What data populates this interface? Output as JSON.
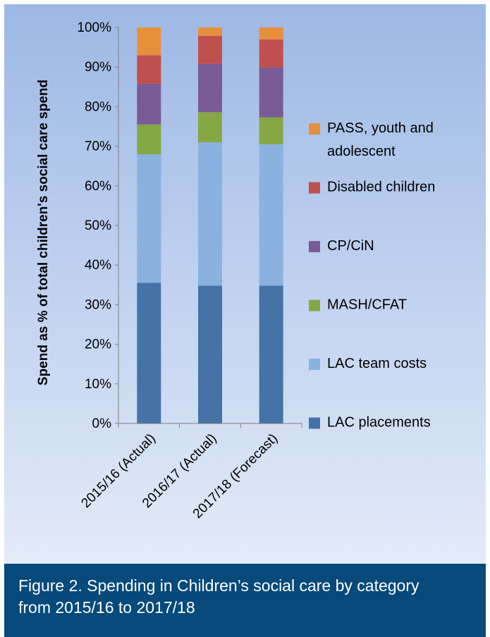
{
  "chart_data": {
    "type": "bar",
    "stacked": true,
    "title": "",
    "xlabel": "",
    "ylabel": "Spend as % of total children's social care spend",
    "ylim": [
      0,
      100
    ],
    "yticks": [
      "0%",
      "10%",
      "20%",
      "30%",
      "40%",
      "50%",
      "60%",
      "70%",
      "80%",
      "90%",
      "100%"
    ],
    "categories": [
      "2015/16 (Actual)",
      "2016/17 (Actual)",
      "2017/18 (Forecast)"
    ],
    "series": [
      {
        "name": "LAC placements",
        "color": "#4573a7",
        "values": [
          35.5,
          34.8,
          34.8
        ]
      },
      {
        "name": "LAC team costs",
        "color": "#8bb1e0",
        "values": [
          32.5,
          36.2,
          35.7
        ]
      },
      {
        "name": "MASH/CFAT",
        "color": "#86a844",
        "values": [
          7.5,
          7.6,
          6.8
        ]
      },
      {
        "name": "CP/CiN",
        "color": "#7a5b95",
        "values": [
          10.3,
          12.2,
          12.6
        ]
      },
      {
        "name": "Disabled children",
        "color": "#c0504d",
        "values": [
          7.2,
          7.1,
          7.1
        ]
      },
      {
        "name": "PASS, youth and adolescent",
        "color": "#e6903c",
        "values": [
          7.0,
          2.1,
          3.0
        ]
      }
    ],
    "legend": [
      {
        "label_lines": [
          "PASS, youth and",
          "adolescent"
        ]
      },
      {
        "label_lines": [
          "Disabled children"
        ]
      },
      {
        "label_lines": [
          "CP/CiN"
        ]
      },
      {
        "label_lines": [
          "MASH/CFAT"
        ]
      },
      {
        "label_lines": [
          "LAC team costs"
        ]
      },
      {
        "label_lines": [
          "LAC placements"
        ]
      }
    ],
    "legend_position": "right",
    "grid": false
  },
  "caption": {
    "text": "Figure 2. Spending in Children’s social care by category from 2015/16 to 2017/18"
  }
}
